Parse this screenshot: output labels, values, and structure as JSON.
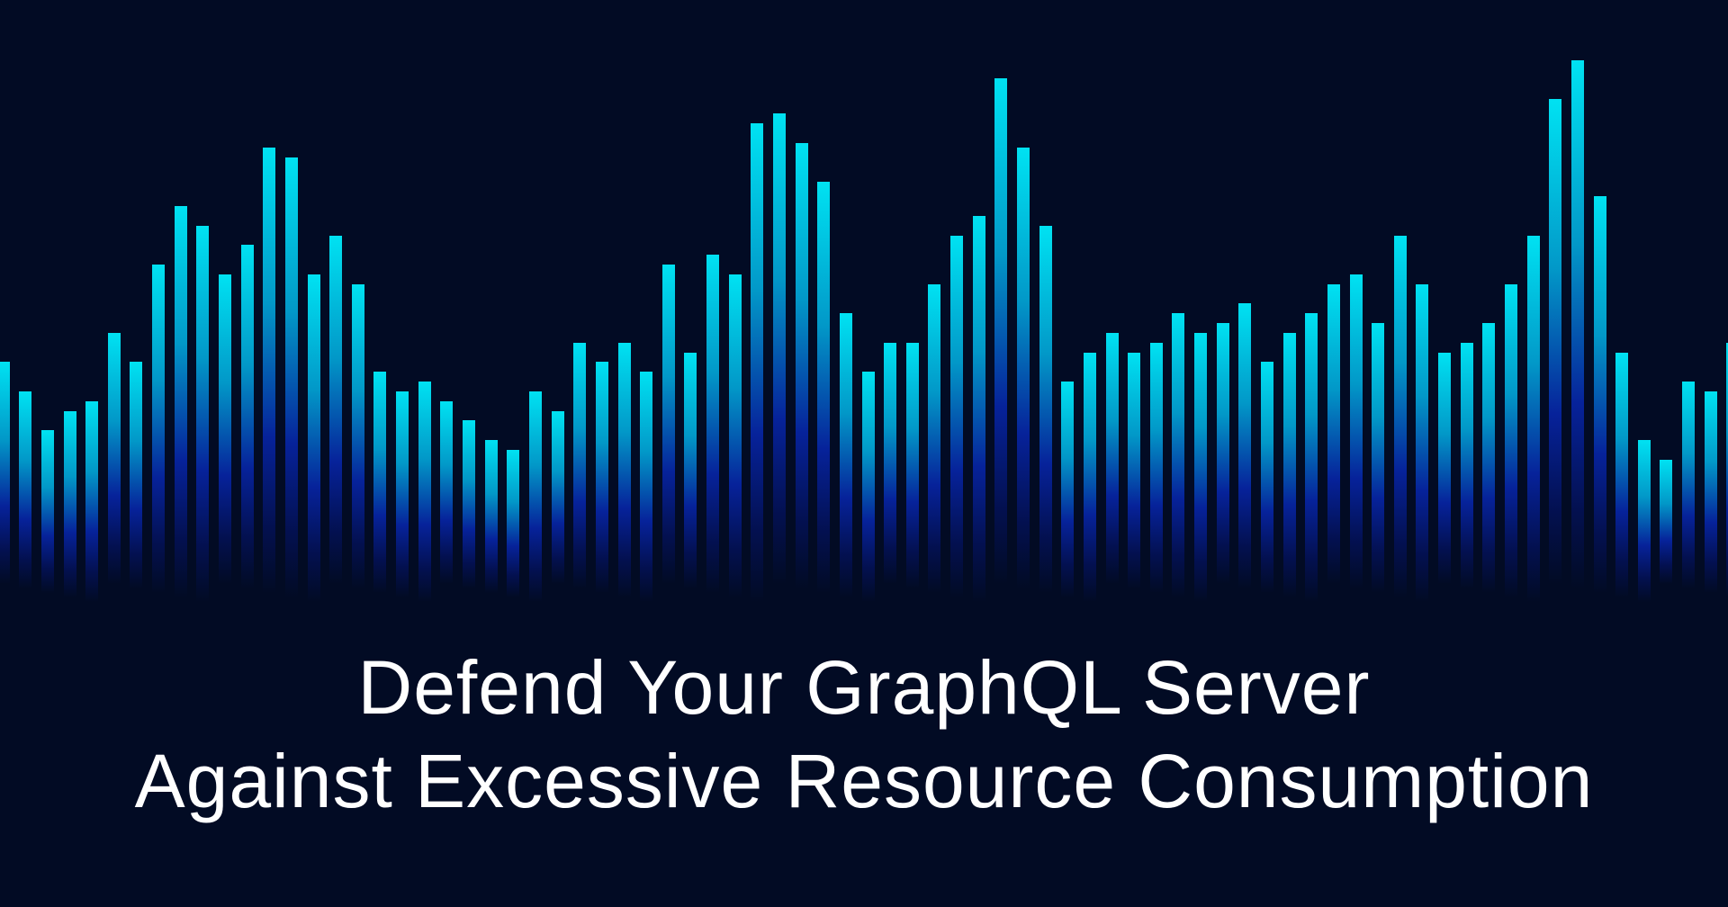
{
  "banner": {
    "title_lines": [
      "Defend Your GraphQL Server",
      "Against Excessive Resource Consumption"
    ],
    "colors": {
      "background": "#020b24",
      "bar_top": "#00e2f2",
      "bar_bottom": "#06229a",
      "text": "#ffffff"
    }
  }
}
